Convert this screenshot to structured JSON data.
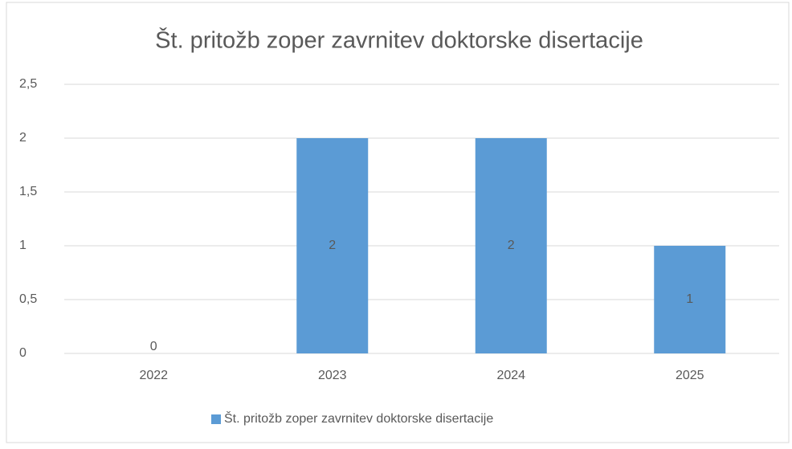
{
  "chart_data": {
    "type": "bar",
    "title": "Št. pritožb zoper zavrnitev doktorske disertacije",
    "categories": [
      "2022",
      "2023",
      "2024",
      "2025"
    ],
    "series": [
      {
        "name": "Št. pritožb zoper zavrnitev doktorske disertacije",
        "color": "#5b9bd5",
        "values": [
          0,
          2,
          2,
          1
        ]
      }
    ],
    "ylim": [
      0,
      2.5
    ],
    "yticks": [
      0,
      {
        "value": 0.5,
        "label": "0,5"
      },
      1,
      {
        "value": 1.5,
        "label": "1,5"
      },
      2,
      {
        "value": 2.5,
        "label": "2,5"
      }
    ],
    "grid": true,
    "legend": "bottom",
    "data_labels": true
  }
}
